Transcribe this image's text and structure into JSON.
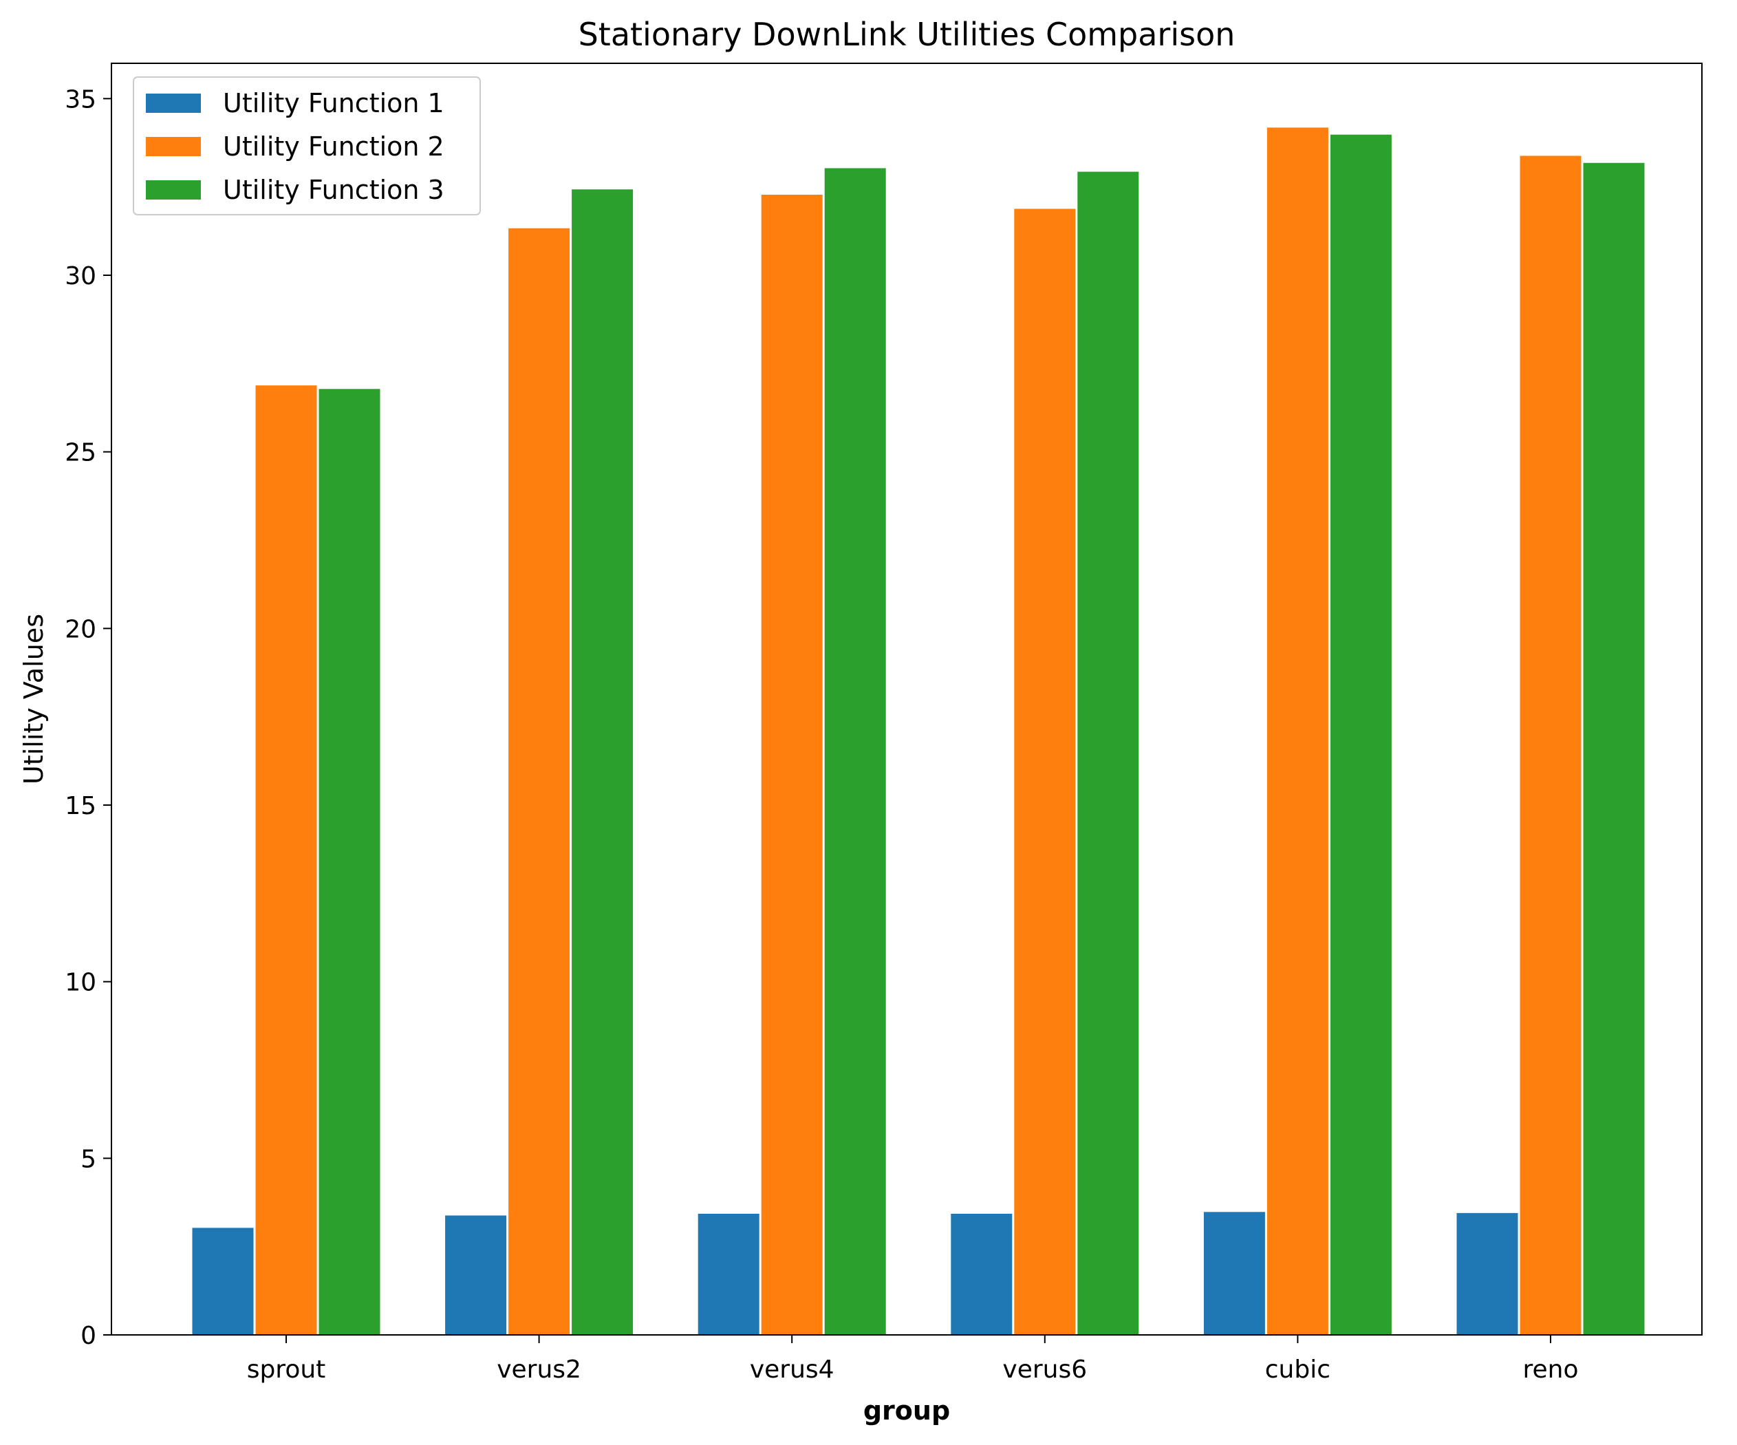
{
  "chart_data": {
    "type": "bar",
    "title": "Stationary DownLink Utilities Comparison",
    "xlabel": "group",
    "ylabel": "Utility Values",
    "categories": [
      "sprout",
      "verus2",
      "verus4",
      "verus6",
      "cubic",
      "reno"
    ],
    "series": [
      {
        "name": "Utility Function 1",
        "color": "#1f77b4",
        "values": [
          3.05,
          3.4,
          3.45,
          3.45,
          3.5,
          3.47
        ]
      },
      {
        "name": "Utility Function 2",
        "color": "#ff7f0e",
        "values": [
          26.9,
          31.35,
          32.3,
          31.9,
          34.2,
          33.4
        ]
      },
      {
        "name": "Utility Function 3",
        "color": "#2ca02c",
        "values": [
          26.8,
          32.45,
          33.05,
          32.95,
          34.0,
          33.2
        ]
      }
    ],
    "ylim": [
      0,
      36
    ],
    "yticks": [
      0,
      5,
      10,
      15,
      20,
      25,
      30,
      35
    ],
    "grid": false,
    "legend_position": "top-left"
  }
}
